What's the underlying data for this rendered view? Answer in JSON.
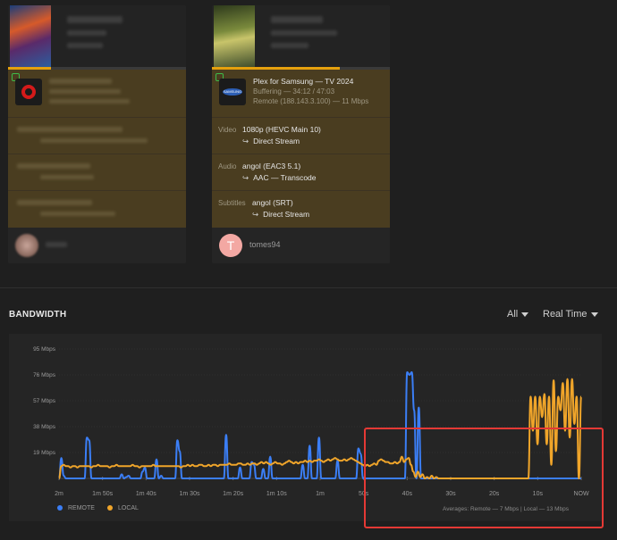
{
  "session": {
    "player_name": "Plex for Samsung",
    "platform": "TV 2024",
    "state": "Buffering",
    "position": "34:12 / 47:03",
    "location": "Remote (188.143.3.100)",
    "bitrate": "11 Mbps",
    "progress": 0.72,
    "video_label": "Video",
    "video_value": "1080p (HEVC Main 10)",
    "video_decision": "Direct Stream",
    "audio_label": "Audio",
    "audio_value": "angol (EAC3 5.1)",
    "audio_decision": "AAC — Transcode",
    "subtitles_label": "Subtitles",
    "subtitles_value": "angol (SRT)",
    "subtitles_decision": "Direct Stream",
    "user_initial": "T",
    "user_name": "tomes94"
  },
  "session_blurred": {
    "progress": 0.24
  },
  "bandwidth": {
    "title": "BANDWIDTH",
    "filter_selected": "All",
    "range_selected": "Real Time",
    "averages": "Averages: Remote — 7 Mbps | Local — 13 Mbps",
    "legend_remote": "REMOTE",
    "legend_local": "LOCAL"
  },
  "colors": {
    "remote": "#3b7ef5",
    "local": "#f0a52a",
    "accent": "#e5a00d",
    "highlight": "#e53935"
  },
  "chart_data": {
    "type": "line",
    "x_labels": [
      "2m",
      "1m 50s",
      "1m 40s",
      "1m 30s",
      "1m 20s",
      "1m 10s",
      "1m",
      "50s",
      "40s",
      "30s",
      "20s",
      "10s",
      "NOW"
    ],
    "y_labels": [
      "95 Mbps",
      "76 Mbps",
      "57 Mbps",
      "38 Mbps",
      "19 Mbps"
    ],
    "ylim": [
      0,
      95
    ],
    "grid": true,
    "legend": "bottom-left",
    "series": [
      {
        "name": "REMOTE",
        "values": [
          0,
          15,
          2,
          0,
          0,
          0,
          0,
          0,
          0,
          0,
          0,
          0,
          30,
          28,
          0,
          0,
          0,
          0,
          0,
          0,
          0,
          0,
          0,
          0,
          0,
          0,
          0,
          3,
          0,
          1,
          2,
          0,
          0,
          0,
          0,
          0,
          5,
          8,
          0,
          0,
          0,
          0,
          14,
          0,
          2,
          0,
          0,
          0,
          0,
          0,
          0,
          28,
          20,
          0,
          0,
          0,
          0,
          0,
          0,
          0,
          0,
          0,
          0,
          0,
          0,
          0,
          0,
          0,
          0,
          0,
          0,
          0,
          32,
          0,
          0,
          0,
          0,
          0,
          8,
          0,
          0,
          0,
          0,
          12,
          10,
          0,
          0,
          0,
          7,
          0,
          0,
          16,
          0,
          0,
          0,
          0,
          0,
          0,
          0,
          0,
          0,
          0,
          0,
          0,
          0,
          10,
          0,
          0,
          24,
          0,
          0,
          0,
          30,
          0,
          0,
          0,
          0,
          0,
          0,
          0,
          13,
          0,
          0,
          0,
          0,
          0,
          0,
          0,
          0,
          22,
          18,
          0,
          0,
          0,
          0,
          0,
          0,
          0,
          0,
          0,
          0,
          0,
          0,
          0,
          0,
          0,
          0,
          0,
          0,
          0,
          78,
          76,
          78,
          50,
          0,
          52,
          0,
          0,
          0,
          0,
          0,
          0,
          0,
          0,
          0,
          0,
          0,
          0,
          0,
          0,
          0,
          0,
          0,
          0,
          0,
          0,
          0,
          0,
          0,
          0,
          0,
          0,
          0,
          0,
          0,
          0,
          0,
          0,
          0,
          0,
          0,
          0,
          0,
          0,
          0,
          0,
          0,
          0,
          0,
          0,
          0,
          0,
          0,
          0,
          0,
          0,
          0,
          0,
          0,
          0,
          0,
          0,
          0,
          0,
          0,
          0,
          0,
          0,
          0,
          0,
          0,
          0,
          0,
          0,
          0,
          0
        ]
      },
      {
        "name": "LOCAL",
        "values": [
          0,
          9,
          10,
          9,
          9,
          8,
          9,
          9,
          8,
          9,
          9,
          9,
          9,
          9,
          8,
          9,
          9,
          10,
          9,
          9,
          9,
          9,
          8,
          9,
          9,
          10,
          9,
          9,
          9,
          9,
          9,
          9,
          10,
          9,
          9,
          8,
          9,
          9,
          9,
          9,
          9,
          10,
          9,
          9,
          9,
          9,
          9,
          9,
          9,
          9,
          9,
          9,
          9,
          8,
          9,
          9,
          10,
          9,
          10,
          9,
          9,
          10,
          10,
          9,
          9,
          10,
          9,
          10,
          10,
          9,
          10,
          10,
          10,
          10,
          11,
          10,
          10,
          10,
          11,
          11,
          10,
          10,
          11,
          10,
          11,
          11,
          10,
          11,
          12,
          11,
          12,
          11,
          10,
          11,
          12,
          11,
          11,
          10,
          11,
          12,
          13,
          12,
          11,
          12,
          11,
          12,
          12,
          13,
          12,
          13,
          12,
          13,
          13,
          14,
          13,
          12,
          13,
          14,
          13,
          14,
          15,
          14,
          13,
          13,
          14,
          13,
          14,
          15,
          14,
          13,
          12,
          11,
          10,
          9,
          10,
          9,
          10,
          11,
          10,
          13,
          14,
          13,
          12,
          12,
          11,
          11,
          12,
          11,
          12,
          16,
          12,
          14,
          15,
          10,
          5,
          1,
          5,
          1,
          3,
          0,
          1,
          0,
          2,
          0,
          1,
          0,
          0,
          0,
          0,
          0,
          0,
          0,
          0,
          0,
          0,
          0,
          0,
          0,
          0,
          0,
          0,
          0,
          0,
          0,
          0,
          0,
          0,
          0,
          0,
          0,
          0,
          0,
          0,
          0,
          0,
          0,
          0,
          0,
          0,
          0,
          0,
          0,
          0,
          0,
          0,
          60,
          35,
          60,
          25,
          60,
          45,
          62,
          25,
          60,
          10,
          72,
          20,
          60,
          50,
          70,
          35,
          73,
          30,
          73,
          40,
          60,
          0,
          60
        ]
      }
    ]
  }
}
